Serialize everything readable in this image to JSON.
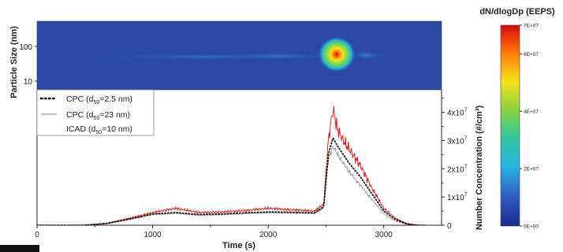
{
  "chart_data": [
    {
      "type": "heatmap",
      "ylabel": "Particle Size (nm)",
      "yscale": "log",
      "ylim": [
        5,
        600
      ],
      "yticks": [
        10,
        100
      ],
      "ytick_labels": [
        "10",
        "100"
      ],
      "xlim": [
        0,
        3500
      ],
      "colormap": "jet",
      "colorbar": {
        "title": "dN/dlogDp (EEPS)",
        "range": [
          0,
          70000000
        ],
        "ticks": [
          0,
          20000000,
          40000000,
          60000000,
          70000000
        ],
        "tick_labels": [
          "0E+00",
          "2E+07",
          "4E+07",
          "6E+07",
          "7E+07"
        ]
      },
      "features": [
        {
          "x_range": [
            900,
            2500
          ],
          "mode_nm": 40,
          "level": 0.3
        },
        {
          "x_range": [
            2480,
            2750
          ],
          "mode_nm": 50,
          "level": 1.0
        }
      ]
    },
    {
      "type": "line",
      "xlabel": "Time (s)",
      "ylabel": "Number Concentration (#/cm³)",
      "xlim": [
        0,
        3500
      ],
      "ylim": [
        0,
        48000000
      ],
      "xticks": [
        0,
        1000,
        2000,
        3000
      ],
      "xtick_labels": [
        "0",
        "1000",
        "2000",
        "3000"
      ],
      "yticks": [
        0,
        10000000,
        20000000,
        30000000,
        40000000
      ],
      "ytick_labels": [
        "0",
        "1x10",
        "2x10",
        "3x10",
        "4x10"
      ],
      "ytick_exponent": "7",
      "legend": "top-left",
      "legend_entries": [
        {
          "label_main": "CPC (d",
          "label_sub": "50",
          "label_tail": "=2.5 nm)",
          "style": "dotted",
          "color": "#111111"
        },
        {
          "label_main": "CPC (d",
          "label_sub": "50",
          "label_tail": "=23 nm)",
          "style": "solid",
          "color": "#9a9a9a"
        },
        {
          "label_main": "ICAD (d",
          "label_sub": "50",
          "label_tail": "=10 nm)",
          "style": "solid",
          "color": "#e01010"
        }
      ],
      "series": [
        {
          "name": "CPC (d50=2.5 nm)",
          "color": "#111111",
          "style": "dotted",
          "x": [
            0,
            400,
            600,
            800,
            1000,
            1200,
            1400,
            1600,
            1800,
            2000,
            2200,
            2400,
            2480,
            2520,
            2560,
            2600,
            2650,
            2700,
            2800,
            2900,
            3000,
            3100,
            3200,
            3300
          ],
          "y": [
            0,
            0,
            600000,
            2200000,
            4000000,
            4500000,
            3800000,
            4000000,
            4400000,
            4700000,
            4600000,
            4400000,
            6500000,
            25000000,
            31000000,
            28000000,
            25000000,
            22000000,
            17000000,
            11000000,
            5000000,
            2000000,
            500000,
            0
          ]
        },
        {
          "name": "CPC (d50=23 nm)",
          "color": "#9a9a9a",
          "style": "solid",
          "x": [
            0,
            400,
            600,
            800,
            1000,
            1200,
            1400,
            1600,
            1800,
            2000,
            2200,
            2400,
            2480,
            2520,
            2560,
            2600,
            2650,
            2700,
            2800,
            2900,
            3000,
            3100,
            3200,
            3300
          ],
          "y": [
            0,
            0,
            500000,
            2000000,
            3700000,
            4200000,
            3500000,
            3700000,
            4100000,
            4400000,
            4300000,
            4100000,
            6000000,
            23000000,
            28000000,
            25000000,
            22000000,
            19000000,
            14000000,
            9000000,
            4000000,
            1500000,
            300000,
            0
          ]
        },
        {
          "name": "ICAD (d50=10 nm)",
          "color": "#e01010",
          "style": "solid",
          "x": [
            0,
            400,
            600,
            800,
            1000,
            1200,
            1400,
            1600,
            1800,
            2000,
            2200,
            2400,
            2480,
            2520,
            2560,
            2600,
            2650,
            2700,
            2800,
            2900,
            3000,
            3100,
            3200,
            3300
          ],
          "y": [
            0,
            0,
            700000,
            2500000,
            4500000,
            6000000,
            4500000,
            4700000,
            5200000,
            6000000,
            5500000,
            5000000,
            7500000,
            30000000,
            41000000,
            34000000,
            30000000,
            27000000,
            21000000,
            13000000,
            6000000,
            2500000,
            600000,
            0
          ]
        }
      ]
    }
  ]
}
